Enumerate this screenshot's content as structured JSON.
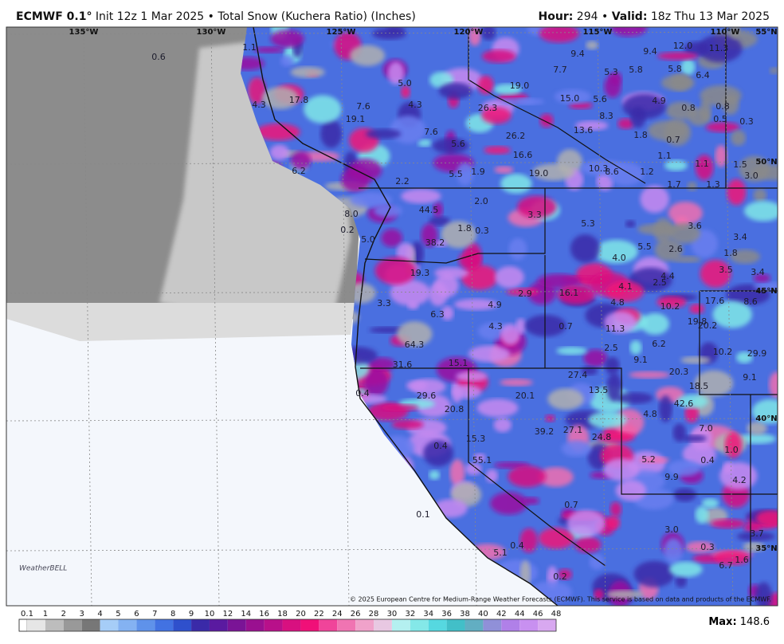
{
  "header": {
    "model": "ECMWF 0.1°",
    "init": "Init 12z 1 Mar 2025",
    "product": "Total Snow (Kuchera Ratio) (Inches)",
    "hour_label": "Hour:",
    "hour": 294,
    "valid_label": "Valid:",
    "valid": "18z Thu 13 Mar 2025"
  },
  "geo_labels": [
    "135°W",
    "130°W",
    "125°W",
    "120°W",
    "115°W",
    "110°W",
    "55°N",
    "50°N",
    "45°N",
    "40°N",
    "35°N"
  ],
  "snow_labels": [
    "0.6",
    "1.1",
    "9.4",
    "9.4",
    "12.0",
    "11.3",
    "7.7",
    "5.3",
    "5.8",
    "5.8",
    "6.4",
    "5.0",
    "19.0",
    "17.8",
    "7.6",
    "4.3",
    "26.3",
    "15.0",
    "5.6",
    "4.9",
    "0.8",
    "0.8",
    "4.3",
    "19.1",
    "8.3",
    "0.5",
    "0.3",
    "13.6",
    "7.6",
    "26.2",
    "1.8",
    "0.7",
    "5.6",
    "1.1",
    "16.6",
    "1.5",
    "6.2",
    "10.3",
    "8.6",
    "1.2",
    "1.1",
    "5.5",
    "1.9",
    "19.0",
    "3.0",
    "1.7",
    "1.3",
    "2.2",
    "2.0",
    "44.5",
    "3.3",
    "5.3",
    "3.6",
    "8.0",
    "0.2",
    "1.8",
    "0.3",
    "3.4",
    "5.0",
    "38.2",
    "5.5",
    "2.6",
    "4.0",
    "1.8",
    "3.5",
    "3.4",
    "19.3",
    "2.9",
    "16.1",
    "4.1",
    "2.5",
    "4.4",
    "17.6",
    "8.6",
    "3.3",
    "4.9",
    "4.8",
    "10.2",
    "6.3",
    "19.8",
    "20.2",
    "4.3",
    "0.7",
    "11.3",
    "64.3",
    "6.2",
    "2.5",
    "10.2",
    "29.9",
    "9.1",
    "31.6",
    "15.1",
    "27.4",
    "20.3",
    "9.1",
    "18.5",
    "13.5",
    "0.4",
    "29.6",
    "20.1",
    "42.6",
    "20.8",
    "4.8",
    "39.2",
    "27.1",
    "24.8",
    "7.0",
    "15.3",
    "0.4",
    "1.0",
    "55.1",
    "5.2",
    "0.4",
    "9.9",
    "4.2",
    "0.7",
    "3.0",
    "3.7",
    "0.1",
    "0.3",
    "0.4",
    "5.1",
    "6.7",
    "0.2",
    "1.6"
  ],
  "logo": "WeatherBELL",
  "copyright": "© 2025 European Centre for Medium-Range Weather Forecasts (ECMWF). This service is based on data and products of the ECMWF.",
  "colorbar": {
    "labels": [
      0.1,
      1,
      2,
      3,
      4,
      5,
      6,
      7,
      8,
      9,
      10,
      12,
      14,
      16,
      18,
      20,
      22,
      24,
      26,
      28,
      30,
      32,
      34,
      36,
      38,
      40,
      42,
      44,
      46,
      48
    ],
    "colors": [
      "#e6e6e6",
      "#bdbdbd",
      "#999999",
      "#777777",
      "#a6cdf7",
      "#84b2f2",
      "#5f92ea",
      "#4272e2",
      "#2f50cc",
      "#3a2aa8",
      "#5a1aa0",
      "#7a1496",
      "#9a1090",
      "#b8108a",
      "#d81080",
      "#f01078",
      "#f0449a",
      "#f074b2",
      "#f0a2ca",
      "#e8c8e2",
      "#b4f0f0",
      "#84e8e8",
      "#56d8e0",
      "#42bfc8",
      "#62aec2",
      "#9090d8",
      "#b080e8",
      "#c890f0",
      "#d8a8f0"
    ]
  },
  "footer": {
    "max_label": "Max:",
    "max_value": 148.6
  }
}
